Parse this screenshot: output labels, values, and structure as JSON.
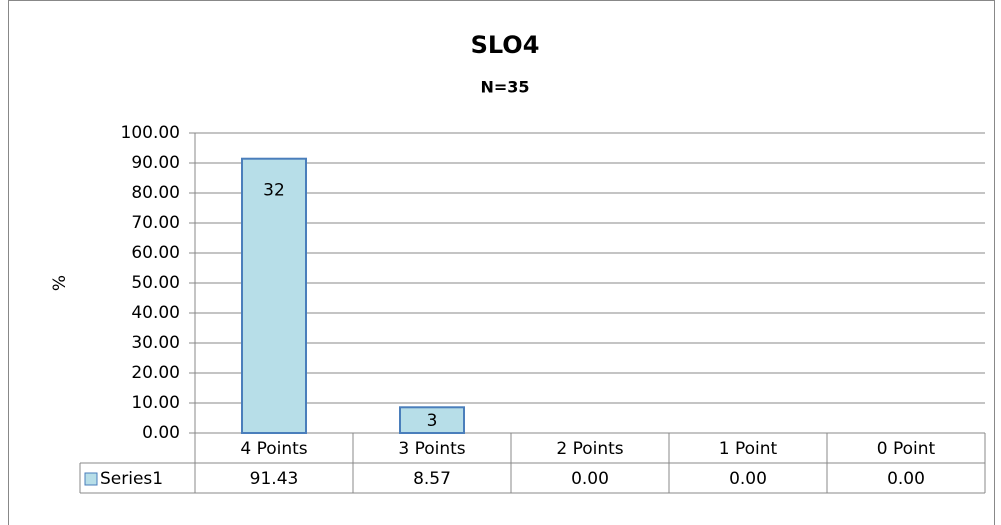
{
  "chart_data": {
    "type": "bar",
    "title": "SLO4",
    "subtitle": "N=35",
    "y_label": "%",
    "categories": [
      "4 Points",
      "3 Points",
      "2 Points",
      "1 Point",
      "0 Point"
    ],
    "series": [
      {
        "name": "Series1",
        "color": "#b7dee8",
        "values": [
          91.43,
          8.57,
          0,
          0,
          0
        ],
        "value_labels": [
          "91.43",
          "8.57",
          "0.00",
          "0.00",
          "0.00"
        ],
        "bar_labels": [
          32,
          3,
          null,
          null,
          null
        ]
      }
    ],
    "ylim": [
      0,
      100
    ],
    "yticks": [
      {
        "value": 0,
        "label": "0.00"
      },
      {
        "value": 10,
        "label": "10.00"
      },
      {
        "value": 20,
        "label": "20.00"
      },
      {
        "value": 30,
        "label": "30.00"
      },
      {
        "value": 40,
        "label": "40.00"
      },
      {
        "value": 50,
        "label": "50.00"
      },
      {
        "value": 60,
        "label": "60.00"
      },
      {
        "value": 70,
        "label": "70.00"
      },
      {
        "value": 80,
        "label": "80.00"
      },
      {
        "value": 90,
        "label": "90.00"
      },
      {
        "value": 100,
        "label": "100.00"
      }
    ],
    "grid": true
  }
}
